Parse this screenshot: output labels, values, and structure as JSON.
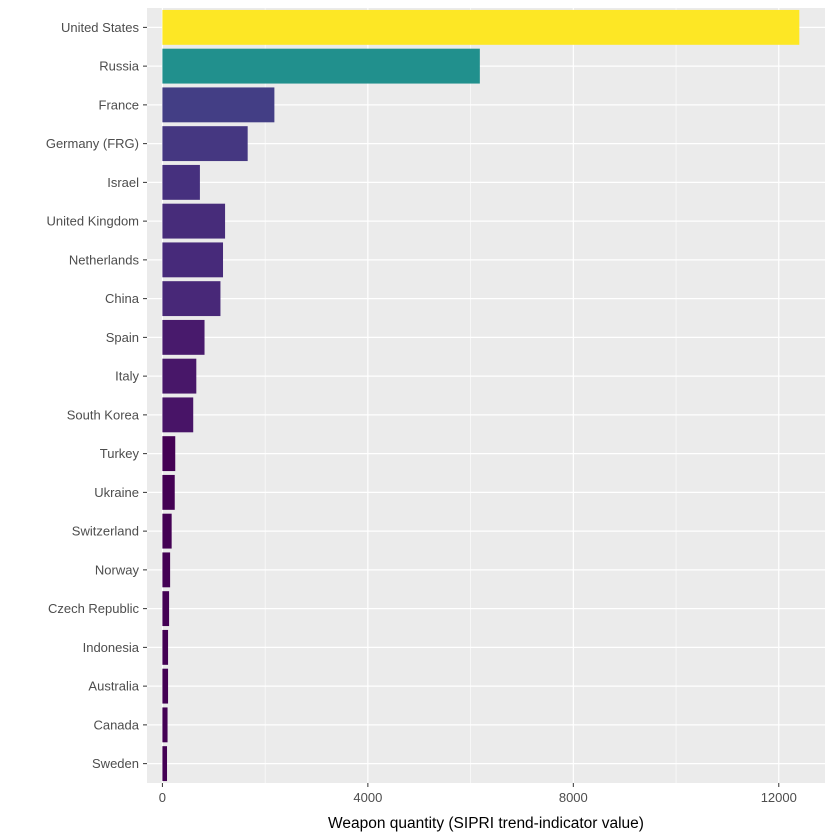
{
  "chart_data": {
    "type": "bar",
    "orientation": "horizontal",
    "xlabel": "Weapon quantity (SIPRI trend-indicator value)",
    "ylabel": "",
    "xlim": [
      -300,
      12900
    ],
    "x_ticks": [
      0,
      4000,
      8000,
      12000
    ],
    "x_minor_ticks": [
      2000,
      6000,
      10000
    ],
    "grid": true,
    "legend": "none",
    "colors": {
      "panel_background": "#EBEBEB",
      "gridline": "#FFFFFF",
      "tick_text": "#4D4D4D",
      "axis_title": "#000000",
      "colormap": "viridis"
    },
    "categories": [
      "United States",
      "Russia",
      "France",
      "Germany (FRG)",
      "Israel",
      "United Kingdom",
      "Netherlands",
      "China",
      "Spain",
      "Italy",
      "South Korea",
      "Turkey",
      "Ukraine",
      "Switzerland",
      "Norway",
      "Czech Republic",
      "Indonesia",
      "Australia",
      "Canada",
      "Sweden"
    ],
    "values": [
      12400,
      6180,
      2180,
      1660,
      730,
      1220,
      1180,
      1130,
      820,
      660,
      600,
      250,
      240,
      180,
      150,
      130,
      110,
      110,
      100,
      90
    ],
    "bar_colors": [
      "#FDE725",
      "#21908D",
      "#433E85",
      "#453781",
      "#46307E",
      "#472C7A",
      "#472A7A",
      "#482878",
      "#481A6C",
      "#481769",
      "#481467",
      "#440154",
      "#440154",
      "#440154",
      "#440154",
      "#440154",
      "#440154",
      "#440154",
      "#440154",
      "#440154"
    ]
  }
}
